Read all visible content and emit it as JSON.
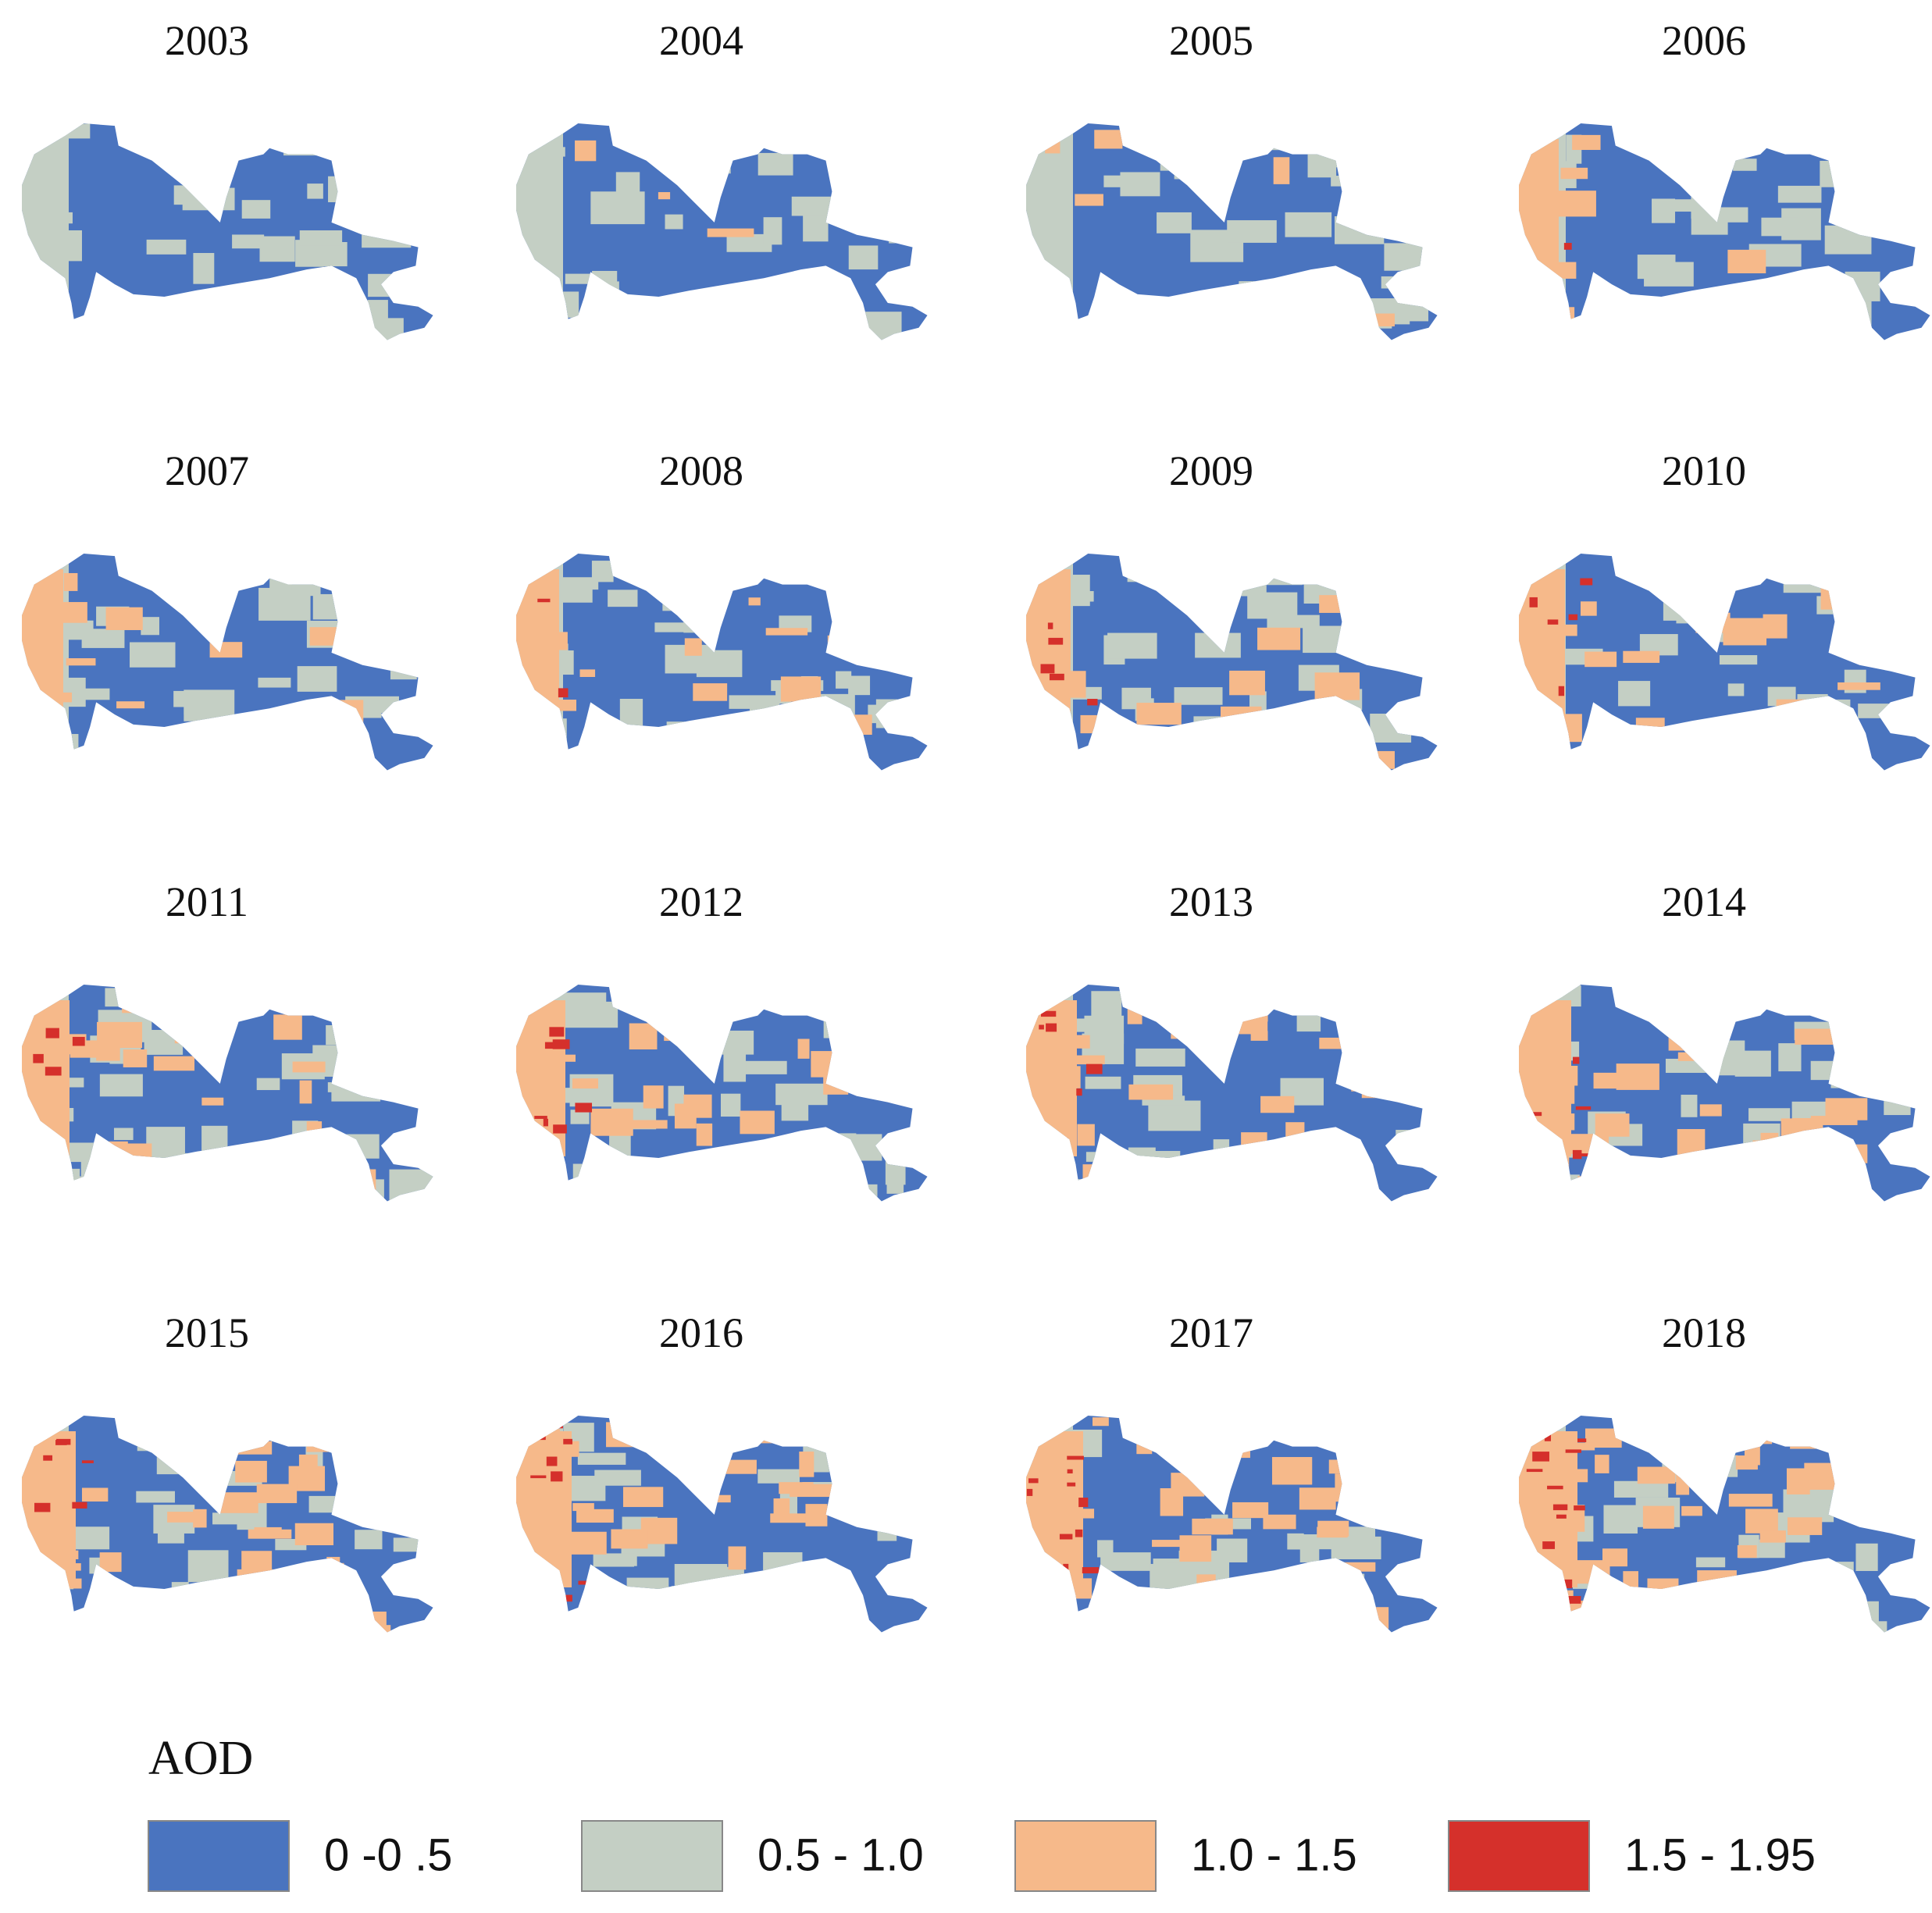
{
  "panels": [
    {
      "title": "2003"
    },
    {
      "title": "2004"
    },
    {
      "title": "2005"
    },
    {
      "title": "2006"
    },
    {
      "title": "2007"
    },
    {
      "title": "2008"
    },
    {
      "title": "2009"
    },
    {
      "title": "2010"
    },
    {
      "title": "2011"
    },
    {
      "title": "2012"
    },
    {
      "title": "2013"
    },
    {
      "title": "2014"
    },
    {
      "title": "2015"
    },
    {
      "title": "2016"
    },
    {
      "title": "2017"
    },
    {
      "title": "2018"
    }
  ],
  "legend": {
    "title": "AOD",
    "items": [
      {
        "label": "0 -0 .5",
        "color": "#4a74bf"
      },
      {
        "label": "0.5 - 1.0",
        "color": "#c4cfc4"
      },
      {
        "label": "1.0 - 1.5",
        "color": "#f6b98a"
      },
      {
        "label": "1.5 - 1.95",
        "color": "#d5302b"
      }
    ]
  }
}
